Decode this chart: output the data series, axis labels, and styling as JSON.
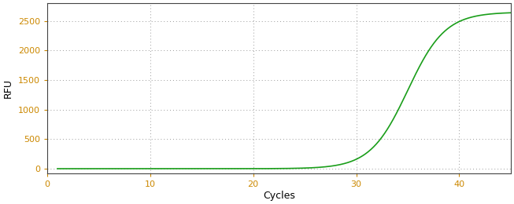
{
  "title": "",
  "xlabel": "Cycles",
  "ylabel": "RFU",
  "line_color": "#1a9e1a",
  "line_width": 1.2,
  "background_color": "#ffffff",
  "grid_color": "#999999",
  "axis_color": "#444444",
  "tick_label_color": "#cc8800",
  "xlabel_color": "#000000",
  "ylabel_color": "#000000",
  "xlim": [
    0,
    45
  ],
  "ylim": [
    -80,
    2800
  ],
  "yticks": [
    0,
    500,
    1000,
    1500,
    2000,
    2500
  ],
  "xticks": [
    0,
    10,
    20,
    30,
    40
  ],
  "sigmoid_L": 2650,
  "sigmoid_k": 0.55,
  "sigmoid_x0": 35.0,
  "x_start": 1,
  "x_end": 45
}
